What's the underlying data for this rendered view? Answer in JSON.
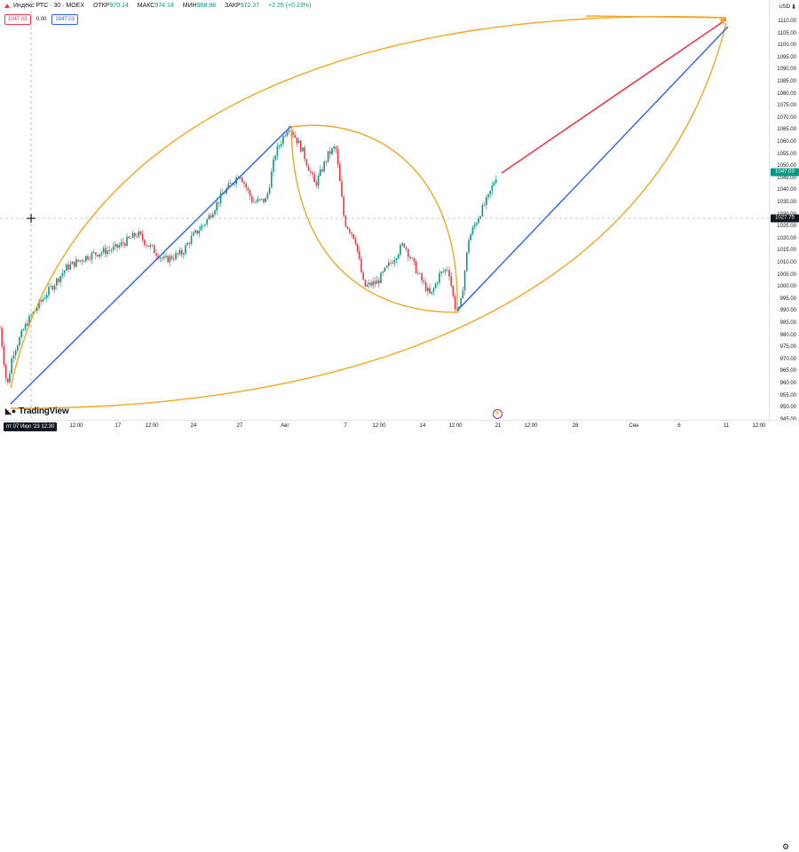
{
  "legend": {
    "symbol_title": "Индекс РТС · 30 · MOEX",
    "open_key": "ОТКР",
    "open_value": "970.14",
    "high_key": "МАКС",
    "high_value": "974.14",
    "low_key": "МИН",
    "low_value": "968.98",
    "close_key": "ЗАКР",
    "close_value": "972.37",
    "change": "+2.25 (+0.23%)"
  },
  "price_boxes": {
    "sell": "1047.03",
    "spread": "0.00",
    "buy": "1047.03"
  },
  "currency": "USD",
  "crosshair_time": "пт 07 Июл '23  12:30",
  "logo_text": "TradingView",
  "price_axis": {
    "ticks": [
      "1110.00",
      "1105.00",
      "1100.00",
      "1095.00",
      "1090.00",
      "1085.00",
      "1080.00",
      "1075.00",
      "1070.00",
      "1065.00",
      "1060.00",
      "1055.00",
      "1050.00",
      "1045.00",
      "1040.00",
      "1035.00",
      "1030.00",
      "1025.00",
      "1020.00",
      "1015.00",
      "1010.00",
      "1005.00",
      "1000.00",
      "995.00",
      "990.00",
      "985.00",
      "980.00",
      "975.00",
      "970.00",
      "965.00",
      "960.00",
      "955.00",
      "950.00",
      "945.00"
    ],
    "last_price_label": "1047.03",
    "crosshair_price_label": "1027.75"
  },
  "time_axis": {
    "ticks": [
      "12:00",
      "17",
      "12:00",
      "24",
      "27",
      "Авг",
      "7",
      "12:00",
      "14",
      "12:00",
      "21",
      "12:00",
      "28",
      "Сен",
      "6",
      "11",
      "12:00"
    ]
  },
  "chart_data": {
    "type": "candlestick",
    "instrument": "Индекс РТС",
    "interval": "30",
    "exchange": "MOEX",
    "currency": "USD",
    "y_range": [
      945,
      1111
    ],
    "last_price": 1047.03,
    "crosshair_price": 1027.75,
    "path_points": [
      [
        "07 Jul",
        958
      ],
      [
        "10 Jul",
        995
      ],
      [
        "12 Jul",
        1005
      ],
      [
        "14 Jul",
        1013
      ],
      [
        "17 Jul",
        1018
      ],
      [
        "19 Jul",
        1020
      ],
      [
        "20 Jul",
        1013
      ],
      [
        "24 Jul",
        1036
      ],
      [
        "26 Jul",
        1047
      ],
      [
        "27 Jul",
        1035
      ],
      [
        "28 Jul",
        1050
      ],
      [
        "31 Jul",
        1067
      ],
      [
        "01 Aug",
        1055
      ],
      [
        "03 Aug",
        1040
      ],
      [
        "04 Aug",
        1057
      ],
      [
        "07 Aug",
        1025
      ],
      [
        "09 Aug",
        998
      ],
      [
        "10 Aug",
        1008
      ],
      [
        "11 Aug",
        1000
      ],
      [
        "14 Aug",
        1018
      ],
      [
        "15 Aug",
        1000
      ],
      [
        "16 Aug",
        996
      ],
      [
        "17 Aug",
        1005
      ],
      [
        "18 Aug",
        990
      ],
      [
        "21 Aug",
        1030
      ],
      [
        "22 Aug",
        1035
      ],
      [
        "23 Aug",
        1047
      ]
    ],
    "drawings": [
      {
        "type": "trend_line",
        "color": "#2962ff",
        "from": [
          "06 Jul",
          951
        ],
        "to": [
          "31 Jul",
          1067
        ]
      },
      {
        "type": "trend_line",
        "color": "#2962ff",
        "from": [
          "18 Aug",
          989
        ],
        "to": [
          "11 Sep",
          1109
        ]
      },
      {
        "type": "trend_line",
        "color": "#f23645",
        "from": [
          "23 Aug",
          1046
        ],
        "to": [
          "11 Sep",
          1112
        ]
      },
      {
        "type": "arc",
        "color": "#f5a623",
        "from": [
          "06 Jul",
          953
        ],
        "to": [
          "11 Sep",
          1112
        ]
      },
      {
        "type": "arc",
        "color": "#f5a623",
        "from": [
          "31 Jul",
          1067
        ],
        "to": [
          "18 Aug",
          988
        ]
      },
      {
        "type": "arc",
        "color": "#f5a623",
        "from": [
          "06 Jul",
          947
        ],
        "to": [
          "11 Sep",
          1109
        ]
      }
    ]
  }
}
